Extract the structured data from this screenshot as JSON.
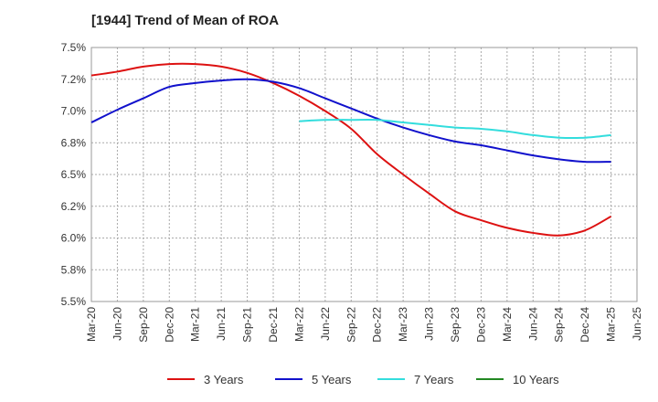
{
  "chart_data": {
    "type": "line",
    "title": "[1944]  Trend of Mean of ROA",
    "xlabel": "",
    "ylabel": "",
    "ylim": [
      5.5,
      7.5
    ],
    "yticks": [
      5.5,
      5.75,
      6.0,
      6.25,
      6.5,
      6.75,
      7.0,
      7.25,
      7.5
    ],
    "ytick_labels": [
      "5.5%",
      "5.8%",
      "6.0%",
      "6.2%",
      "6.5%",
      "6.8%",
      "7.0%",
      "7.2%",
      "7.5%"
    ],
    "categories": [
      "Mar-20",
      "Jun-20",
      "Sep-20",
      "Dec-20",
      "Mar-21",
      "Jun-21",
      "Sep-21",
      "Dec-21",
      "Mar-22",
      "Jun-22",
      "Sep-22",
      "Dec-22",
      "Mar-23",
      "Jun-23",
      "Sep-23",
      "Dec-23",
      "Mar-24",
      "Jun-24",
      "Sep-24",
      "Dec-24",
      "Mar-25",
      "Jun-25"
    ],
    "grid": true,
    "legend_position": "bottom",
    "series": [
      {
        "name": "3 Years",
        "color": "#dd1111",
        "values": [
          7.28,
          7.31,
          7.35,
          7.37,
          7.37,
          7.35,
          7.3,
          7.22,
          7.12,
          7.0,
          6.86,
          6.66,
          6.5,
          6.35,
          6.21,
          6.14,
          6.08,
          6.04,
          6.02,
          6.06,
          6.17,
          null
        ]
      },
      {
        "name": "5 Years",
        "color": "#1111cc",
        "values": [
          6.91,
          7.01,
          7.1,
          7.19,
          7.22,
          7.24,
          7.25,
          7.23,
          7.18,
          7.1,
          7.02,
          6.94,
          6.87,
          6.81,
          6.76,
          6.73,
          6.69,
          6.65,
          6.62,
          6.6,
          6.6,
          null
        ]
      },
      {
        "name": "7 Years",
        "color": "#33dddd",
        "values": [
          null,
          null,
          null,
          null,
          null,
          null,
          null,
          null,
          6.92,
          6.93,
          6.93,
          6.93,
          6.91,
          6.89,
          6.87,
          6.86,
          6.84,
          6.81,
          6.79,
          6.79,
          6.81,
          null
        ]
      },
      {
        "name": "10 Years",
        "color": "#228822",
        "values": [
          null,
          null,
          null,
          null,
          null,
          null,
          null,
          null,
          null,
          null,
          null,
          null,
          null,
          null,
          null,
          null,
          null,
          null,
          null,
          null,
          null,
          null
        ]
      }
    ]
  }
}
